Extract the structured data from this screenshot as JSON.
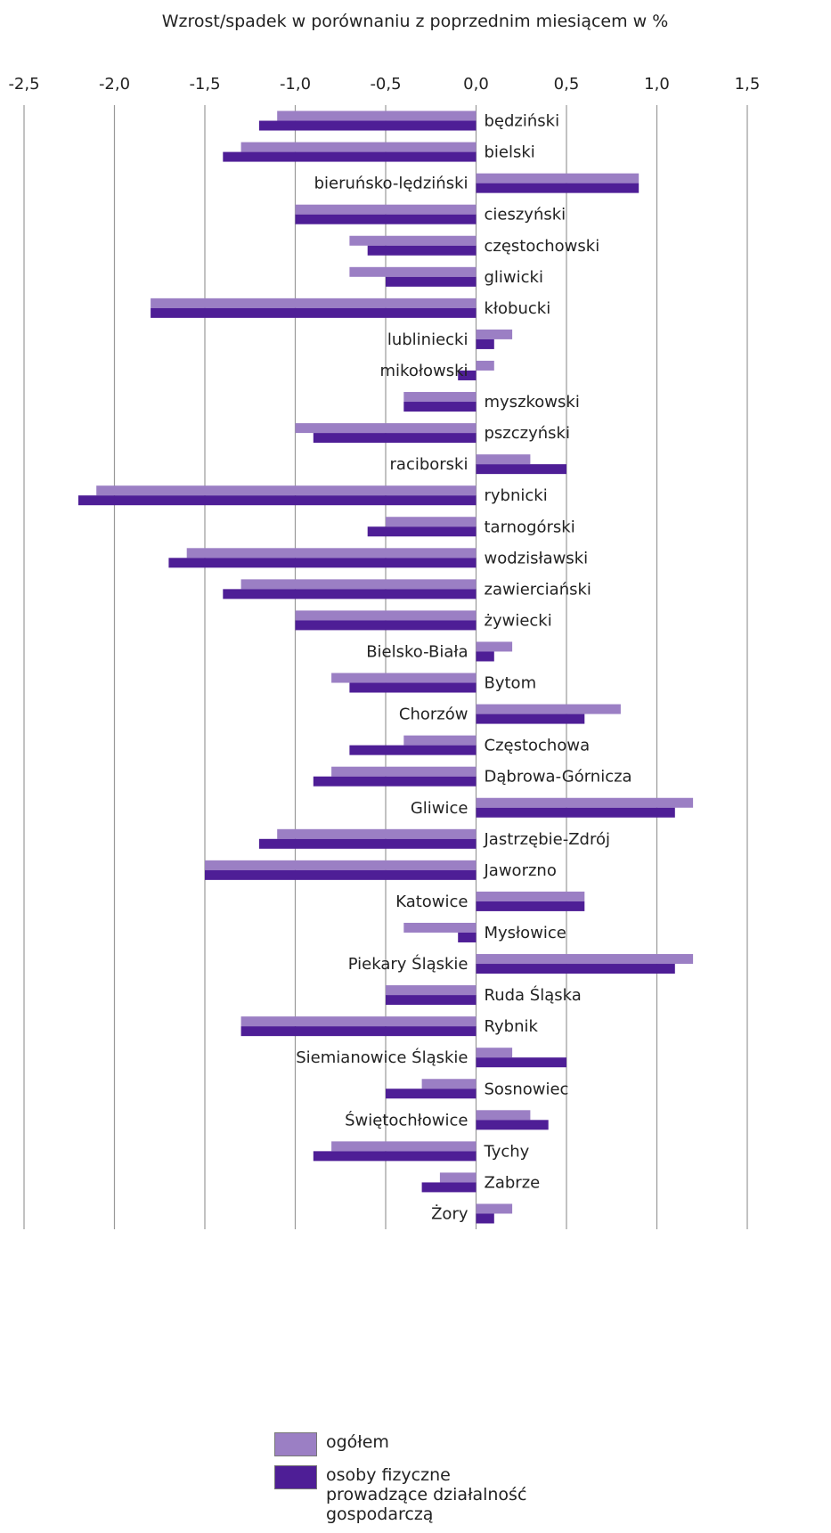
{
  "chart_data": {
    "type": "bar",
    "orientation": "horizontal",
    "title": "Wzrost/spadek w porównaniu z poprzednim miesiącem w %",
    "xlim": [
      -2.5,
      1.5
    ],
    "x_ticks": [
      "-2,5",
      "-2,0",
      "-1,5",
      "-1,0",
      "-0,5",
      "0,0",
      "0,5",
      "1,0",
      "1,5"
    ],
    "x_tick_values": [
      -2.5,
      -2.0,
      -1.5,
      -1.0,
      -0.5,
      0.0,
      0.5,
      1.0,
      1.5
    ],
    "grid": "vertical",
    "legend_position": "bottom-center",
    "categories": [
      "będziński",
      "bielski",
      "bieruńsko-lędziński",
      "cieszyński",
      "częstochowski",
      "gliwicki",
      "kłobucki",
      "lubliniecki",
      "mikołowski",
      "myszkowski",
      "pszczyński",
      "raciborski",
      "rybnicki",
      "tarnogórski",
      "wodzisławski",
      "zawierciański",
      "żywiecki",
      "Bielsko-Biała",
      "Bytom",
      "Chorzów",
      "Częstochowa",
      "Dąbrowa-Górnicza",
      "Gliwice",
      "Jastrzębie-Zdrój",
      "Jaworzno",
      "Katowice",
      "Mysłowice",
      "Piekary Śląskie",
      "Ruda Śląska",
      "Rybnik",
      "Siemianowice Śląskie",
      "Sosnowiec",
      "Świętochłowice",
      "Tychy",
      "Zabrze",
      "Żory"
    ],
    "series": [
      {
        "name": "ogółem",
        "color": "#9b7fc4",
        "values": [
          -1.1,
          -1.3,
          0.9,
          -1.0,
          -0.7,
          -0.7,
          -1.8,
          0.2,
          0.1,
          -0.4,
          -1.0,
          0.3,
          -2.1,
          -0.5,
          -1.6,
          -1.3,
          -1.0,
          0.2,
          -0.8,
          0.8,
          -0.4,
          -0.8,
          1.2,
          -1.1,
          -1.5,
          0.6,
          -0.4,
          1.2,
          -0.5,
          -1.3,
          0.2,
          -0.3,
          0.3,
          -0.8,
          -0.2,
          0.2
        ]
      },
      {
        "name": "osoby fizyczne\nprowadzące działalność\ngospodarczą",
        "color": "#4e1e96",
        "values": [
          -1.2,
          -1.4,
          0.9,
          -1.0,
          -0.6,
          -0.5,
          -1.8,
          0.1,
          -0.1,
          -0.4,
          -0.9,
          0.5,
          -2.2,
          -0.6,
          -1.7,
          -1.4,
          -1.0,
          0.1,
          -0.7,
          0.6,
          -0.7,
          -0.9,
          1.1,
          -1.2,
          -1.5,
          0.6,
          -0.1,
          1.1,
          -0.5,
          -1.3,
          0.5,
          -0.5,
          0.4,
          -0.9,
          -0.3,
          0.1
        ]
      }
    ]
  }
}
